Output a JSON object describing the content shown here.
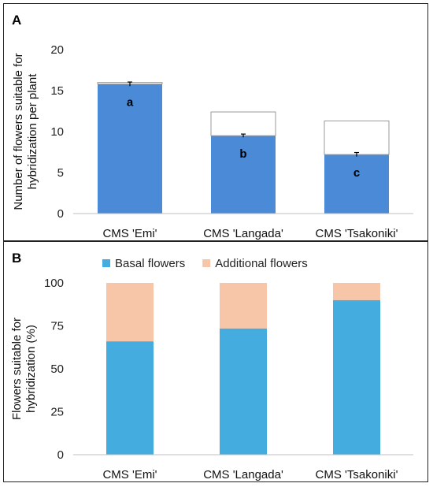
{
  "chart_data": [
    {
      "panel": "A",
      "type": "bar",
      "categories": [
        "CMS 'Emi'",
        "CMS 'Langada'",
        "CMS 'Tsakoniki'"
      ],
      "series": [
        {
          "values": [
            15.8,
            9.5,
            7.2
          ],
          "color": "#4a8ad6"
        },
        {
          "values": [
            0.2,
            2.9,
            4.1
          ],
          "color": "#ffffff"
        }
      ],
      "error_bars": [
        0.25,
        0.2,
        0.25
      ],
      "significance_labels": [
        "a",
        "b",
        "c"
      ],
      "ylabel_lines": [
        "Number of flowers suitable for",
        "hybridization per plant"
      ],
      "yticks": [
        "0",
        "5",
        "10",
        "15",
        "20"
      ],
      "ylim": [
        0,
        20
      ],
      "stacked": true,
      "grid": false
    },
    {
      "panel": "B",
      "type": "bar",
      "categories": [
        "CMS 'Emi'",
        "CMS 'Langada'",
        "CMS 'Tsakoniki'"
      ],
      "series": [
        {
          "name": "Basal flowers",
          "values": [
            66,
            73.5,
            90
          ],
          "color": "#45ace0"
        },
        {
          "name": "Additional flowers",
          "values": [
            34,
            26.5,
            10
          ],
          "color": "#f7c5a8"
        }
      ],
      "ylabel_lines": [
        "Flowers suitable for",
        "hybridization (%)"
      ],
      "yticks": [
        "0",
        "25",
        "50",
        "75",
        "100"
      ],
      "ylim": [
        0,
        100
      ],
      "stacked": true,
      "legend_position": "top",
      "grid": false
    }
  ]
}
